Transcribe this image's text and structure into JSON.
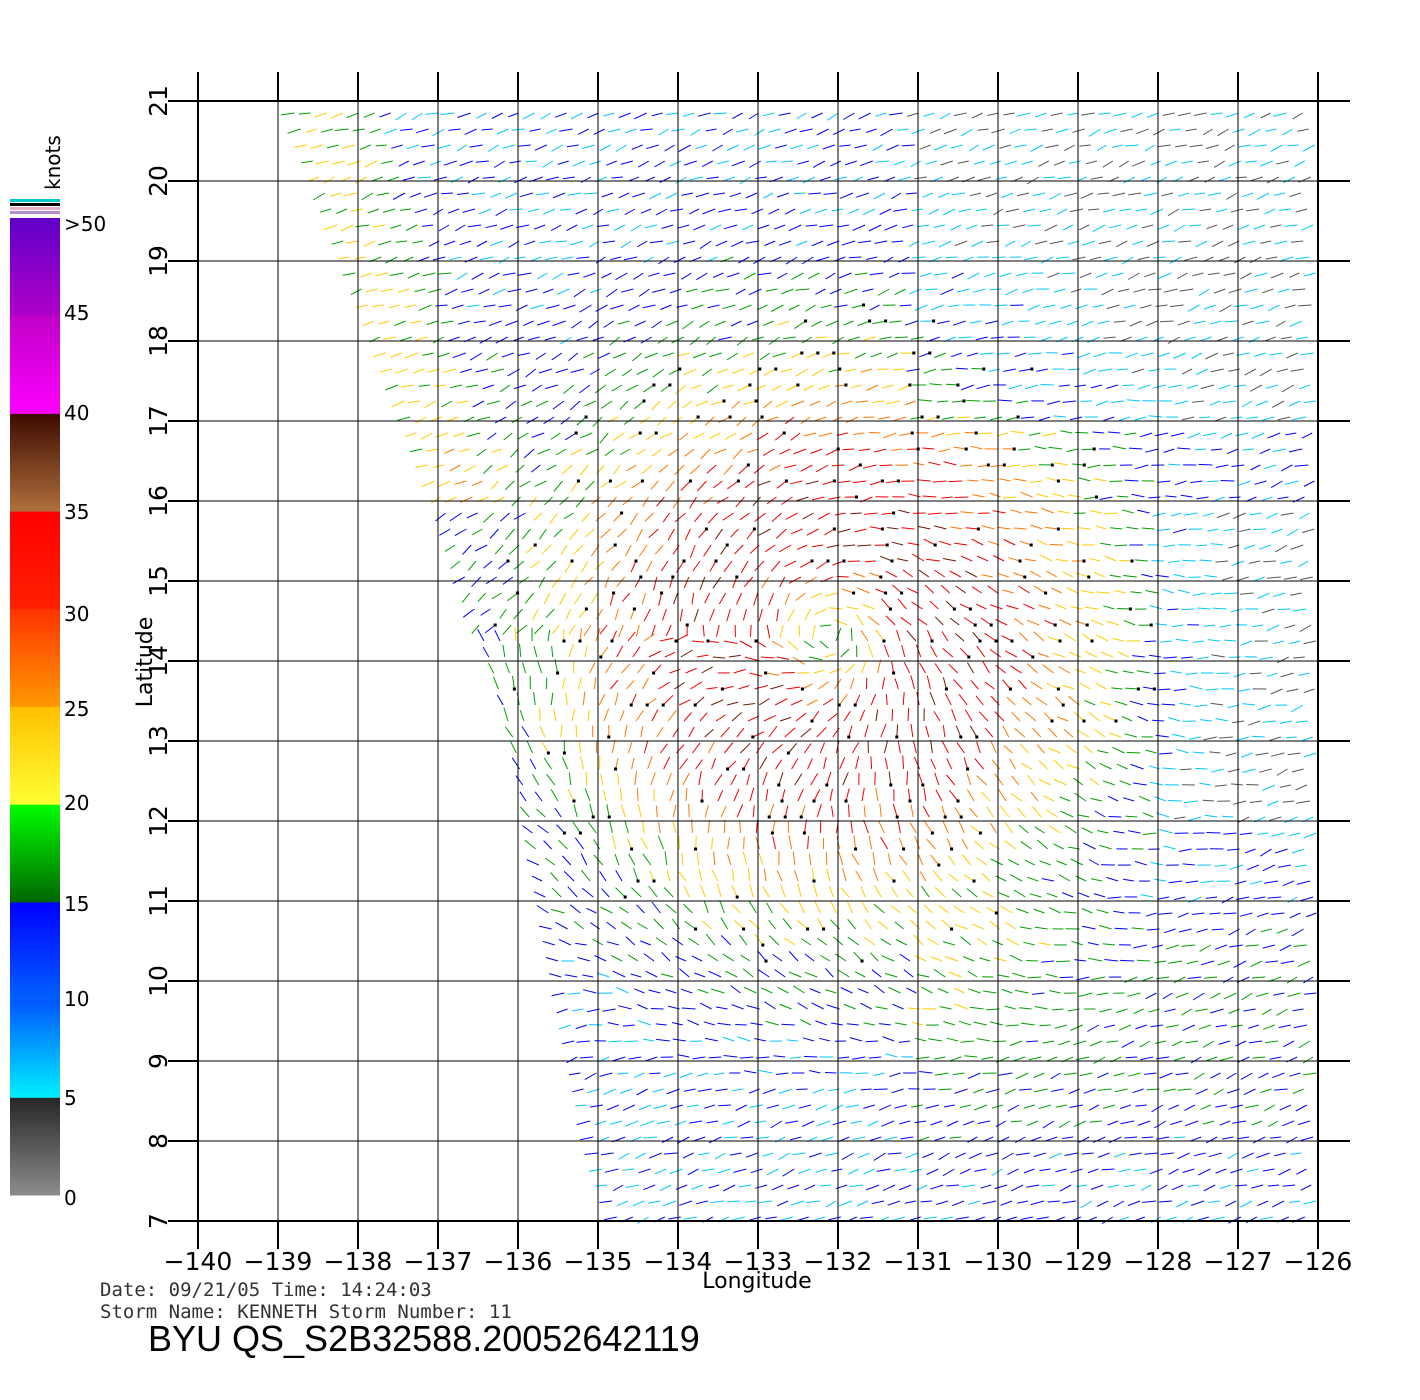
{
  "chart_data": {
    "type": "wind-barb-map",
    "xlabel": "Longitude",
    "ylabel": "Latitude",
    "xlim": [
      -140,
      -126
    ],
    "ylim": [
      7,
      21
    ],
    "x_ticks": [
      "-140",
      "-139",
      "-138",
      "-137",
      "-136",
      "-135",
      "-134",
      "-133",
      "-132",
      "-131",
      "-130",
      "-129",
      "-128",
      "-127",
      "-126"
    ],
    "y_ticks": [
      "7",
      "8",
      "9",
      "10",
      "11",
      "12",
      "13",
      "14",
      "15",
      "16",
      "17",
      "18",
      "19",
      "20",
      "21"
    ],
    "grid": true,
    "storm_center": {
      "lon": -132.1,
      "lat": 14.3
    },
    "swath_left_edge": [
      [
        -138.9,
        21
      ],
      [
        -137.0,
        16
      ],
      [
        -136.1,
        13
      ],
      [
        -135.1,
        8
      ],
      [
        -134.8,
        7
      ]
    ],
    "colorbar": {
      "title": "knots",
      "position": "left",
      "labels": [
        ">50",
        "45",
        "40",
        "35",
        "30",
        "25",
        "20",
        "15",
        "10",
        "5",
        "0"
      ],
      "bins": [
        {
          "from": 0,
          "to": 5,
          "colors": [
            "#8c8c8c",
            "#262626"
          ]
        },
        {
          "from": 5,
          "to": 10,
          "colors": [
            "#00f0ff",
            "#0055ff"
          ]
        },
        {
          "from": 10,
          "to": 15,
          "colors": [
            "#0060ff",
            "#0000ff"
          ]
        },
        {
          "from": 15,
          "to": 20,
          "colors": [
            "#006600",
            "#00ff00"
          ]
        },
        {
          "from": 20,
          "to": 25,
          "colors": [
            "#ffff33",
            "#ffc000"
          ]
        },
        {
          "from": 25,
          "to": 30,
          "colors": [
            "#ff9900",
            "#ff3300"
          ]
        },
        {
          "from": 30,
          "to": 35,
          "colors": [
            "#ff2000",
            "#ff0000"
          ]
        },
        {
          "from": 35,
          "to": 40,
          "colors": [
            "#b0703c",
            "#3c0a00"
          ]
        },
        {
          "from": 40,
          "to": 45,
          "colors": [
            "#ff00ff",
            "#c000c8"
          ]
        },
        {
          "from": 45,
          "to": 50,
          "colors": [
            "#b000c8",
            "#6000c8"
          ]
        }
      ]
    },
    "colors": {
      "lt5": "#555555",
      "lt10": "#00c8ff",
      "lt15": "#0000ff",
      "lt20": "#00a000",
      "lt25": "#ffcc00",
      "lt30": "#ff7700",
      "lt35": "#ee0000",
      "lt40": "#6a1a00",
      "lt45": "#dd00dd",
      "ge45": "#6000c8"
    },
    "rain_flag_color": "#000000"
  },
  "footer": {
    "date_line": "Date: 09/21/05   Time: 14:24:03",
    "storm_line": "Storm Name: KENNETH   Storm Number: 11",
    "title": "BYU QS_S2B32588.20052642119"
  }
}
